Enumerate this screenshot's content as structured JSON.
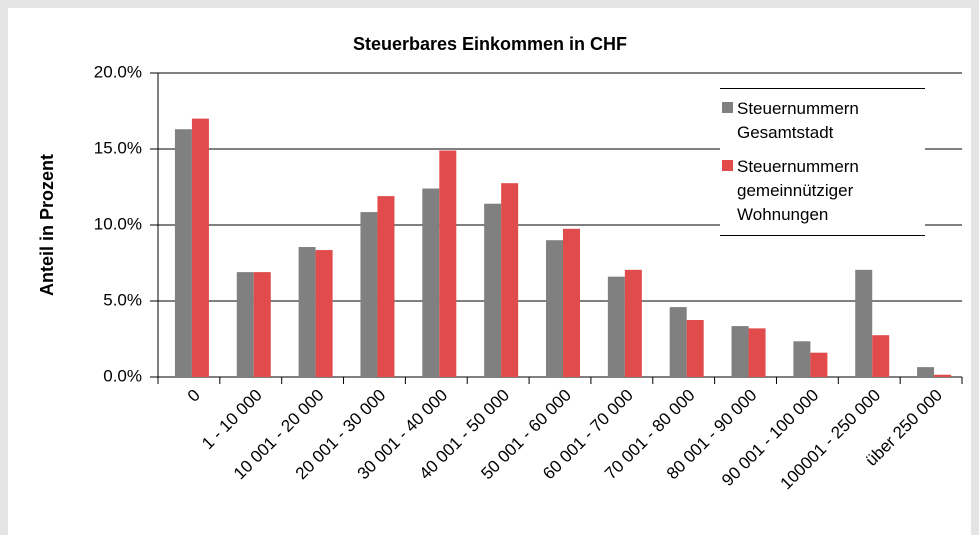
{
  "chart_data": {
    "type": "bar",
    "title": "Steuerbares Einkommen in CHF",
    "y_label": "Anteil in Prozent",
    "categories": [
      "0",
      "1 - 10 000",
      "10 001 - 20 000",
      "20 001 - 30 000",
      "30 001 - 40 000",
      "40 001 - 50 000",
      "50 001 - 60 000",
      "60 001 - 70 000",
      "70 001 - 80 000",
      "80 001 - 90 000",
      "90 001 - 100 000",
      "100001 - 250 000",
      "über 250 000"
    ],
    "series": [
      {
        "name": "Steuernummern Gesamtstadt",
        "color": "#808080",
        "values": [
          16.3,
          6.9,
          8.55,
          10.85,
          12.4,
          11.4,
          9.0,
          6.6,
          4.6,
          3.35,
          2.35,
          7.05,
          0.65
        ]
      },
      {
        "name": "Steuernummern gemeinnütziger Wohnungen",
        "color": "#e14b4b",
        "values": [
          17.0,
          6.9,
          8.35,
          11.9,
          14.9,
          12.75,
          9.75,
          7.05,
          3.75,
          3.2,
          1.6,
          2.75,
          0.15
        ]
      }
    ],
    "ylim": [
      0,
      20
    ],
    "yticks": [
      {
        "value": 0,
        "label": "0.0%"
      },
      {
        "value": 5,
        "label": "5.0%"
      },
      {
        "value": 10,
        "label": "10.0%"
      },
      {
        "value": 15,
        "label": "15.0%"
      },
      {
        "value": 20,
        "label": "20.0%"
      }
    ],
    "grid": true,
    "legend": "top-right"
  }
}
